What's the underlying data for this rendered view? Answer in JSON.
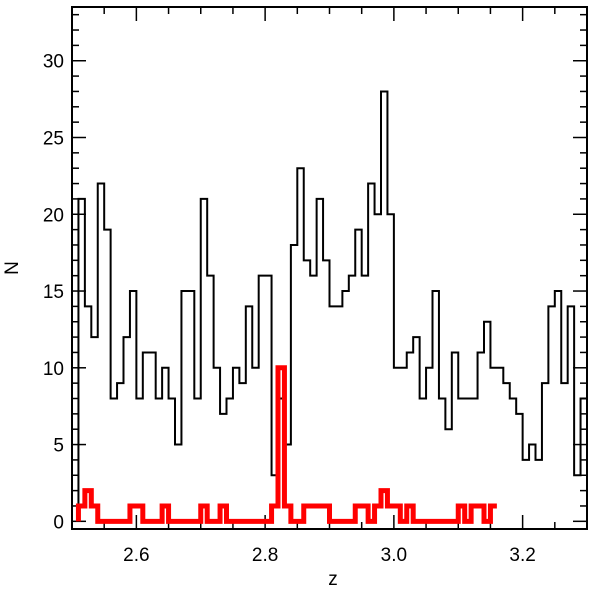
{
  "chart_data": {
    "type": "step-histogram",
    "xlabel": "z",
    "ylabel": "N",
    "xlim": [
      2.5,
      3.3
    ],
    "ylim": [
      -0.5,
      33.5
    ],
    "xticks": [
      2.6,
      2.8,
      3.0,
      3.2
    ],
    "xtick_labels": [
      "2.6",
      "2.8",
      "3.0",
      "3.2"
    ],
    "yticks": [
      0,
      5,
      10,
      15,
      20,
      25,
      30
    ],
    "ytick_labels": [
      "0",
      "5",
      "10",
      "15",
      "20",
      "25",
      "30"
    ],
    "bin_start": 2.51,
    "bin_width": 0.01,
    "series": [
      {
        "color": "#000000",
        "values": [
          21,
          14,
          12,
          22,
          19,
          8,
          9,
          12,
          15,
          8,
          11,
          11,
          8,
          10,
          8,
          5,
          15,
          15,
          8,
          21,
          16,
          10,
          7,
          8,
          10,
          9,
          14,
          10,
          16,
          16,
          3,
          8,
          5,
          18,
          23,
          17,
          16,
          21,
          17,
          14,
          14,
          15,
          16,
          19,
          16,
          22,
          20,
          28,
          20,
          10,
          10,
          11,
          12,
          8,
          10,
          15,
          8,
          6,
          11,
          8,
          8,
          8,
          11,
          13,
          10,
          10,
          9,
          8,
          7,
          4,
          5,
          4,
          9,
          14,
          15,
          9,
          14,
          3,
          8
        ]
      },
      {
        "color": "#ff0000",
        "values": [
          1,
          2,
          1,
          0,
          0,
          0,
          0,
          0,
          1,
          1,
          0,
          0,
          0,
          1,
          0,
          0,
          0,
          0,
          0,
          1,
          0,
          0,
          1,
          0,
          0,
          0,
          0,
          0,
          0,
          0,
          1,
          10,
          1,
          0,
          0,
          1,
          1,
          1,
          1,
          0,
          0,
          0,
          0,
          1,
          1,
          0,
          1,
          2,
          1,
          1,
          0,
          1,
          0,
          0,
          0,
          0,
          0,
          0,
          0,
          1,
          0,
          1,
          1,
          0,
          1
        ]
      }
    ]
  }
}
